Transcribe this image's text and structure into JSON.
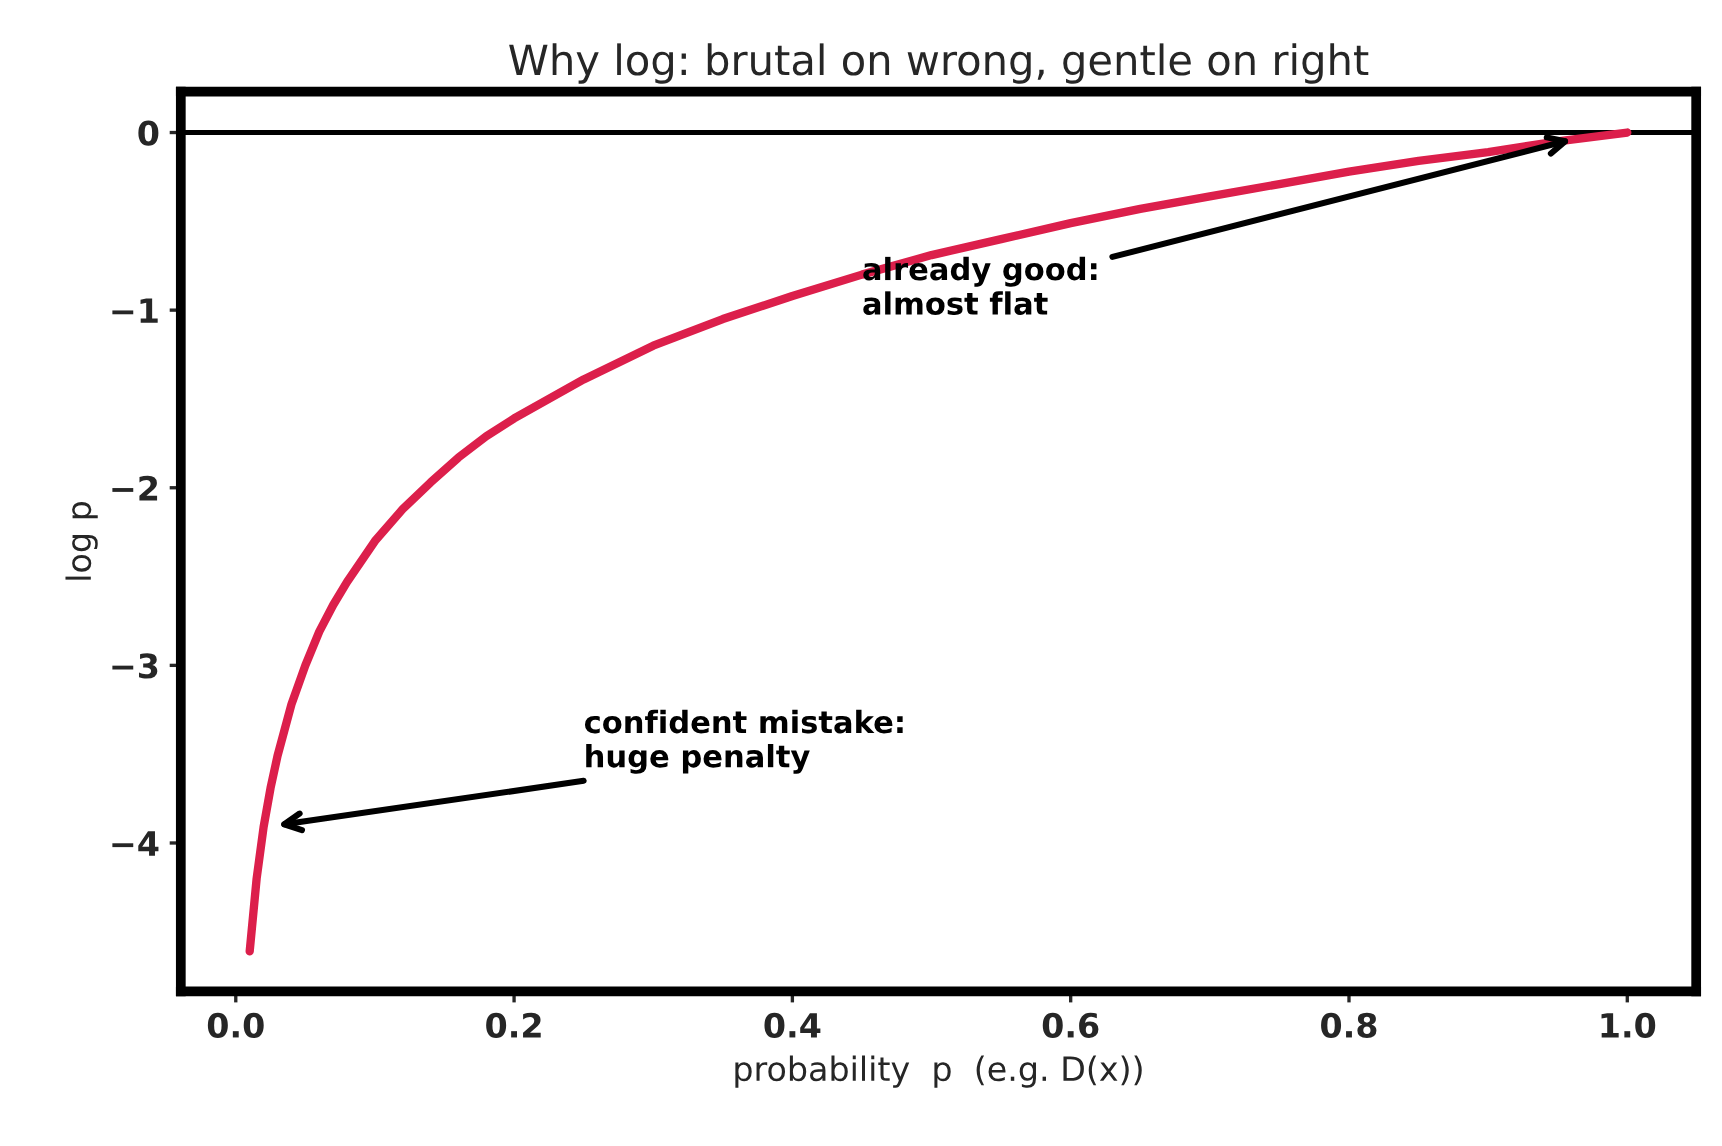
{
  "chart_data": {
    "type": "line",
    "title": "Why log: brutal on wrong, gentle on right",
    "xlabel": "probability  p  (e.g. D(x))",
    "ylabel": "log p",
    "x": [
      0.01,
      0.015,
      0.02,
      0.025,
      0.03,
      0.04,
      0.05,
      0.06,
      0.07,
      0.08,
      0.1,
      0.12,
      0.14,
      0.16,
      0.18,
      0.2,
      0.25,
      0.3,
      0.35,
      0.4,
      0.45,
      0.5,
      0.55,
      0.6,
      0.65,
      0.7,
      0.75,
      0.8,
      0.85,
      0.9,
      0.95,
      1.0
    ],
    "series": [
      {
        "color": "#dc1f4b",
        "values": [
          -4.61,
          -4.2,
          -3.91,
          -3.69,
          -3.51,
          -3.22,
          -3.0,
          -2.81,
          -2.66,
          -2.53,
          -2.3,
          -2.12,
          -1.97,
          -1.83,
          -1.71,
          -1.61,
          -1.39,
          -1.2,
          -1.05,
          -0.92,
          -0.8,
          -0.69,
          -0.6,
          -0.51,
          -0.43,
          -0.36,
          -0.29,
          -0.22,
          -0.16,
          -0.11,
          -0.05,
          0.0
        ]
      }
    ],
    "xlim": [
      -0.0395,
      1.0495
    ],
    "ylim": [
      -4.835,
      0.23
    ],
    "xticks": [
      {
        "value": 0,
        "label": "0.0"
      },
      0.2,
      0.4,
      0.6,
      0.8,
      {
        "value": 1,
        "label": "1.0"
      }
    ],
    "yticks": [
      {
        "value": -4,
        "label": "−4"
      },
      {
        "value": -3,
        "label": "−3"
      },
      {
        "value": -2,
        "label": "−2"
      },
      {
        "value": -1,
        "label": "−1"
      },
      0
    ],
    "ref_lines": [
      {
        "axis": "y",
        "value": 0,
        "color": "#000000"
      }
    ],
    "annotations": [
      {
        "text": "confident mistake:\nhuge penalty",
        "x": 0.03,
        "y": -3.9
      },
      {
        "text": "already good:\nalmost flat",
        "x": 0.96,
        "y": -0.04
      }
    ],
    "grid": false,
    "legend": false,
    "marker": "none",
    "line_style": "solid"
  }
}
